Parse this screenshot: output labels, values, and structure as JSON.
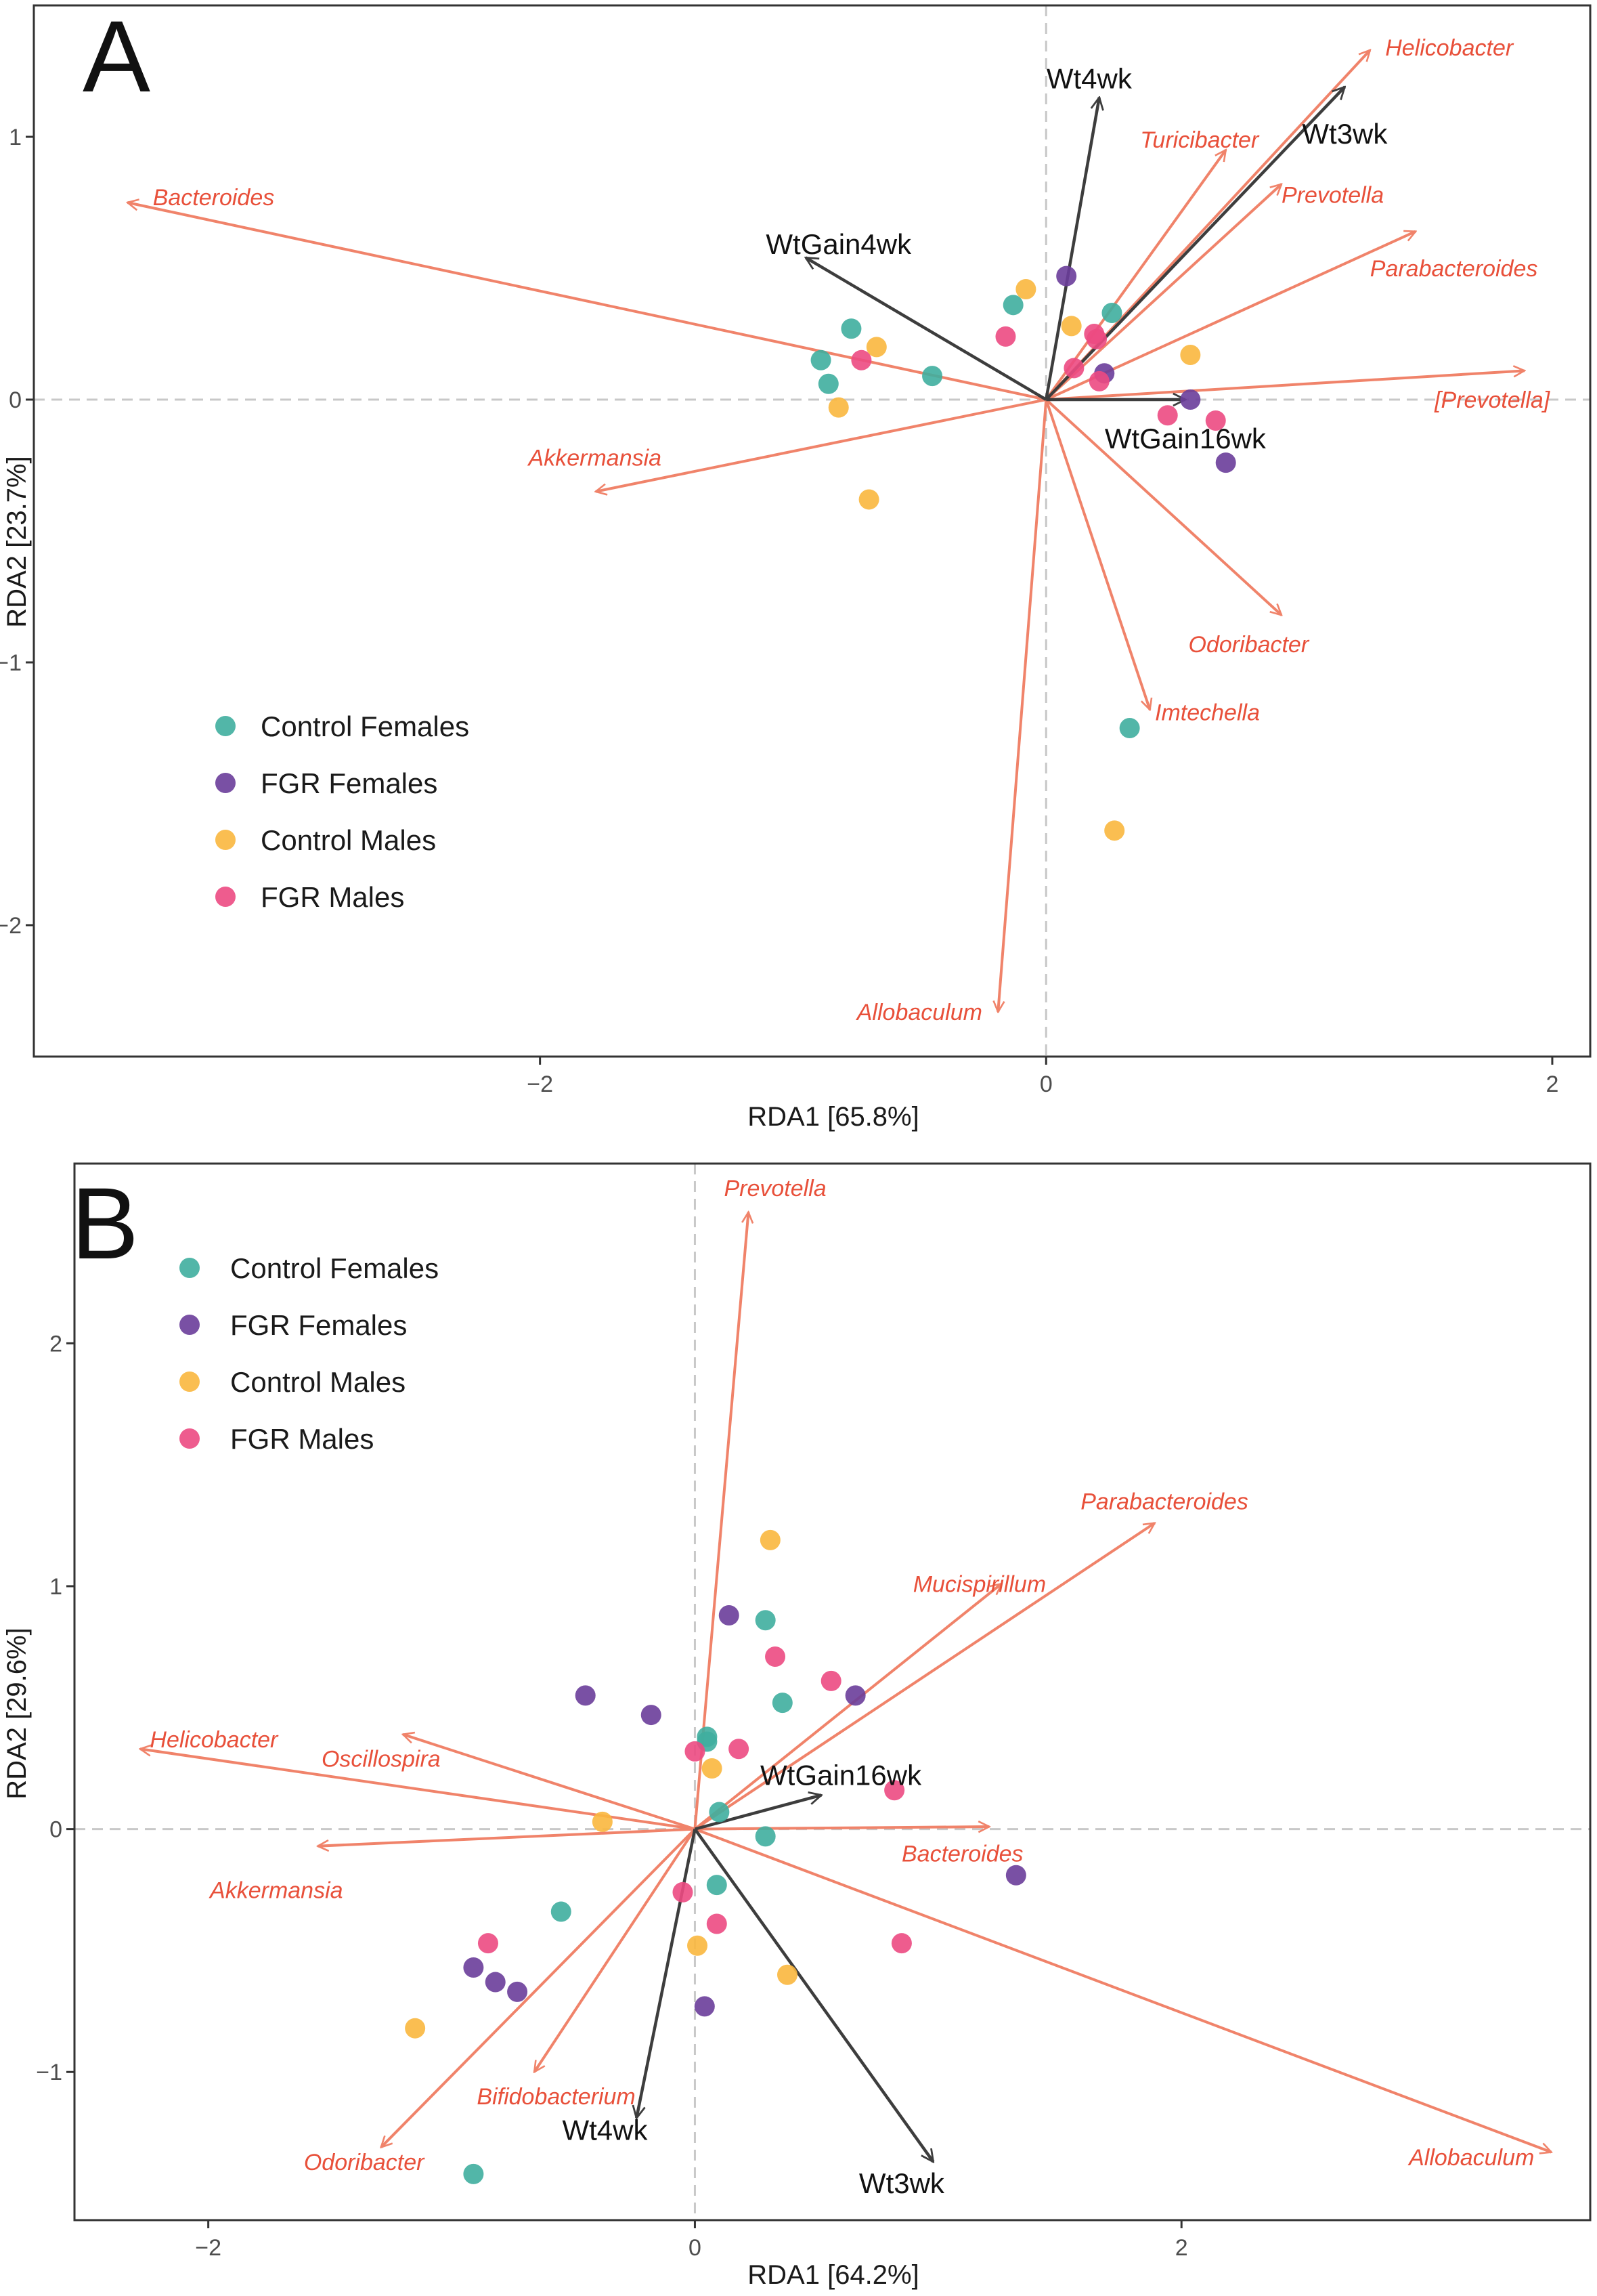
{
  "colors": {
    "control_females": "#3fae9f",
    "fgr_females": "#6a3d9a",
    "control_males": "#f9b73e",
    "fgr_males": "#ec4a82",
    "species_arrow": "#f0836a",
    "species_text": "#e8503a",
    "env_arrow": "#3d3d3d",
    "frame": "#333333",
    "zero_line": "#c8c8c8"
  },
  "chart_data": [
    {
      "type": "scatter",
      "title": "A",
      "xlabel": "RDA1 [65.8%]",
      "ylabel": "RDA2 [23.7%]",
      "xlim": [
        -4.0,
        2.15
      ],
      "ylim": [
        -2.5,
        1.5
      ],
      "xticks": [
        -2,
        0,
        2
      ],
      "xtick_labels": [
        "−2",
        "0",
        "2"
      ],
      "yticks": [
        1,
        0,
        -1,
        -2
      ],
      "ytick_labels": [
        "1",
        "0",
        "−1",
        "−2"
      ],
      "legend_position": "bottom-left",
      "legend": [
        {
          "label": "Control Females",
          "color_key": "control_females"
        },
        {
          "label": "FGR Females",
          "color_key": "fgr_females"
        },
        {
          "label": "Control Males",
          "color_key": "control_males"
        },
        {
          "label": "FGR Males",
          "color_key": "fgr_males"
        }
      ],
      "points": [
        {
          "group": "control_females",
          "x": -0.77,
          "y": 0.27
        },
        {
          "group": "control_females",
          "x": -0.89,
          "y": 0.15
        },
        {
          "group": "control_females",
          "x": -0.86,
          "y": 0.06
        },
        {
          "group": "control_females",
          "x": -0.45,
          "y": 0.09
        },
        {
          "group": "control_females",
          "x": -0.13,
          "y": 0.36
        },
        {
          "group": "control_females",
          "x": 0.26,
          "y": 0.33
        },
        {
          "group": "control_females",
          "x": 0.33,
          "y": -1.25
        },
        {
          "group": "fgr_females",
          "x": 0.08,
          "y": 0.47
        },
        {
          "group": "fgr_females",
          "x": 0.23,
          "y": 0.1
        },
        {
          "group": "fgr_females",
          "x": 0.57,
          "y": 0.0
        },
        {
          "group": "fgr_females",
          "x": 0.71,
          "y": -0.24
        },
        {
          "group": "control_males",
          "x": -0.08,
          "y": 0.42
        },
        {
          "group": "control_males",
          "x": 0.1,
          "y": 0.28
        },
        {
          "group": "control_males",
          "x": -0.67,
          "y": 0.2
        },
        {
          "group": "control_males",
          "x": -0.82,
          "y": -0.03
        },
        {
          "group": "control_males",
          "x": -0.7,
          "y": -0.38
        },
        {
          "group": "control_males",
          "x": 0.57,
          "y": 0.17
        },
        {
          "group": "control_males",
          "x": 0.27,
          "y": -1.64
        },
        {
          "group": "fgr_males",
          "x": -0.73,
          "y": 0.15
        },
        {
          "group": "fgr_males",
          "x": -0.16,
          "y": 0.24
        },
        {
          "group": "fgr_males",
          "x": 0.19,
          "y": 0.25
        },
        {
          "group": "fgr_males",
          "x": 0.2,
          "y": 0.23
        },
        {
          "group": "fgr_males",
          "x": 0.11,
          "y": 0.12
        },
        {
          "group": "fgr_males",
          "x": 0.21,
          "y": 0.07
        },
        {
          "group": "fgr_males",
          "x": 0.48,
          "y": -0.06
        },
        {
          "group": "fgr_males",
          "x": 0.67,
          "y": -0.08
        }
      ],
      "species_vectors": [
        {
          "label": "Helicobacter",
          "x": 1.28,
          "y": 1.33,
          "anchor": "start",
          "dx": 0.06,
          "dy": 0.01
        },
        {
          "label": "Turicibacter",
          "x": 0.71,
          "y": 0.95,
          "anchor": "end",
          "dx": 0.13,
          "dy": 0.04
        },
        {
          "label": "Prevotella",
          "x": 0.93,
          "y": 0.82,
          "anchor": "start",
          "dx": 0.0,
          "dy": -0.04
        },
        {
          "label": "Parabacteroides",
          "x": 1.46,
          "y": 0.64,
          "anchor": "start",
          "dx": -0.18,
          "dy": -0.14
        },
        {
          "label": "Bacteroides",
          "x": -3.63,
          "y": 0.75,
          "anchor": "start",
          "dx": 0.1,
          "dy": 0.02
        },
        {
          "label": "[Prevotella]",
          "x": 1.89,
          "y": 0.11,
          "anchor": "end",
          "dx": 0.1,
          "dy": -0.11
        },
        {
          "label": "Akkermansia",
          "x": -1.78,
          "y": -0.35,
          "anchor": "end",
          "dx": 0.26,
          "dy": 0.13
        },
        {
          "label": "Odoribacter",
          "x": 0.93,
          "y": -0.82,
          "anchor": "middle",
          "dx": -0.13,
          "dy": -0.11
        },
        {
          "label": "Imtechella",
          "x": 0.41,
          "y": -1.18,
          "anchor": "start",
          "dx": 0.02,
          "dy": -0.01
        },
        {
          "label": "Allobaculum",
          "x": -0.19,
          "y": -2.33,
          "anchor": "middle",
          "dx": -0.31,
          "dy": -0.0
        }
      ],
      "env_vectors": [
        {
          "label": "Wt4wk",
          "x": 0.21,
          "y": 1.15,
          "anchor": "middle",
          "dx": -0.04,
          "dy": 0.07
        },
        {
          "label": "Wt3wk",
          "x": 1.18,
          "y": 1.19,
          "anchor": "middle",
          "dx": 0.0,
          "dy": -0.18
        },
        {
          "label": "WtGain4wk",
          "x": -0.95,
          "y": 0.54,
          "anchor": "middle",
          "dx": 0.13,
          "dy": 0.05
        },
        {
          "label": "WtGain16wk",
          "x": 0.55,
          "y": 0.0,
          "anchor": "middle",
          "dx": -0.0,
          "dy": -0.15
        }
      ]
    },
    {
      "type": "scatter",
      "title": "B",
      "xlabel": "RDA1 [64.2%]",
      "ylabel": "RDA2 [29.6%]",
      "xlim": [
        -2.55,
        3.68
      ],
      "ylim": [
        -1.61,
        2.74
      ],
      "xticks": [
        -2,
        0,
        2
      ],
      "xtick_labels": [
        "−2",
        "0",
        "2"
      ],
      "yticks": [
        2,
        1,
        0,
        -1
      ],
      "ytick_labels": [
        "2",
        "1",
        "0",
        "−1"
      ],
      "legend_position": "top-left",
      "legend": [
        {
          "label": "Control Females",
          "color_key": "control_females"
        },
        {
          "label": "FGR Females",
          "color_key": "fgr_females"
        },
        {
          "label": "Control Males",
          "color_key": "control_males"
        },
        {
          "label": "FGR Males",
          "color_key": "fgr_males"
        }
      ],
      "points": [
        {
          "group": "control_females",
          "x": 0.29,
          "y": 0.86
        },
        {
          "group": "control_females",
          "x": 0.36,
          "y": 0.52
        },
        {
          "group": "control_females",
          "x": 0.05,
          "y": 0.38
        },
        {
          "group": "control_females",
          "x": 0.05,
          "y": 0.36
        },
        {
          "group": "control_females",
          "x": 0.1,
          "y": 0.07
        },
        {
          "group": "control_females",
          "x": 0.29,
          "y": -0.03
        },
        {
          "group": "control_females",
          "x": 0.09,
          "y": -0.23
        },
        {
          "group": "control_females",
          "x": -0.55,
          "y": -0.34
        },
        {
          "group": "control_females",
          "x": -0.91,
          "y": -1.42
        },
        {
          "group": "fgr_females",
          "x": 0.14,
          "y": 0.88
        },
        {
          "group": "fgr_females",
          "x": -0.45,
          "y": 0.55
        },
        {
          "group": "fgr_females",
          "x": -0.18,
          "y": 0.47
        },
        {
          "group": "fgr_females",
          "x": 0.66,
          "y": 0.55
        },
        {
          "group": "fgr_females",
          "x": 1.32,
          "y": -0.19
        },
        {
          "group": "fgr_females",
          "x": -0.91,
          "y": -0.57
        },
        {
          "group": "fgr_females",
          "x": -0.82,
          "y": -0.63
        },
        {
          "group": "fgr_females",
          "x": -0.73,
          "y": -0.67
        },
        {
          "group": "fgr_females",
          "x": 0.04,
          "y": -0.73
        },
        {
          "group": "control_males",
          "x": 0.31,
          "y": 1.19
        },
        {
          "group": "control_males",
          "x": 0.07,
          "y": 0.25
        },
        {
          "group": "control_males",
          "x": -0.38,
          "y": 0.03
        },
        {
          "group": "control_males",
          "x": 0.01,
          "y": -0.48
        },
        {
          "group": "control_males",
          "x": 0.38,
          "y": -0.6
        },
        {
          "group": "control_males",
          "x": -1.15,
          "y": -0.82
        },
        {
          "group": "fgr_males",
          "x": 0.33,
          "y": 0.71
        },
        {
          "group": "fgr_males",
          "x": 0.56,
          "y": 0.61
        },
        {
          "group": "fgr_males",
          "x": 0.18,
          "y": 0.33
        },
        {
          "group": "fgr_males",
          "x": 0.0,
          "y": 0.32
        },
        {
          "group": "fgr_males",
          "x": 0.82,
          "y": 0.16
        },
        {
          "group": "fgr_males",
          "x": -0.05,
          "y": -0.26
        },
        {
          "group": "fgr_males",
          "x": 0.09,
          "y": -0.39
        },
        {
          "group": "fgr_males",
          "x": 0.85,
          "y": -0.47
        },
        {
          "group": "fgr_males",
          "x": -0.85,
          "y": -0.47
        }
      ],
      "species_vectors": [
        {
          "label": "Prevotella",
          "x": 0.22,
          "y": 2.54,
          "anchor": "middle",
          "dx": 0.11,
          "dy": 0.1
        },
        {
          "label": "Parabacteroides",
          "x": 1.89,
          "y": 1.26,
          "anchor": "middle",
          "dx": 0.04,
          "dy": 0.09
        },
        {
          "label": "Mucispirillum",
          "x": 1.26,
          "y": 1.01,
          "anchor": "middle",
          "dx": -0.09,
          "dy": 0.0
        },
        {
          "label": "Helicobacter",
          "x": -2.28,
          "y": 0.33,
          "anchor": "start",
          "dx": 0.04,
          "dy": 0.04
        },
        {
          "label": "Oscillospira",
          "x": -1.2,
          "y": 0.39,
          "anchor": "middle",
          "dx": -0.09,
          "dy": -0.1
        },
        {
          "label": "Akkermansia",
          "x": -1.55,
          "y": -0.07,
          "anchor": "middle",
          "dx": -0.17,
          "dy": -0.18
        },
        {
          "label": "Bacteroides",
          "x": 1.21,
          "y": 0.01,
          "anchor": "middle",
          "dx": -0.11,
          "dy": -0.11
        },
        {
          "label": "Allobaculum",
          "x": 3.52,
          "y": -1.33,
          "anchor": "end",
          "dx": -0.07,
          "dy": -0.02
        },
        {
          "label": "Bifidobacterium",
          "x": -0.66,
          "y": -1.0,
          "anchor": "middle",
          "dx": 0.09,
          "dy": -0.1
        },
        {
          "label": "Odoribacter",
          "x": -1.29,
          "y": -1.31,
          "anchor": "middle",
          "dx": -0.07,
          "dy": -0.06
        }
      ],
      "env_vectors": [
        {
          "label": "WtGain16wk",
          "x": 0.52,
          "y": 0.14,
          "anchor": "middle",
          "dx": 0.08,
          "dy": 0.08
        },
        {
          "label": "Wt4wk",
          "x": -0.24,
          "y": -1.19,
          "anchor": "middle",
          "dx": -0.13,
          "dy": -0.05
        },
        {
          "label": "Wt3wk",
          "x": 0.98,
          "y": -1.37,
          "anchor": "middle",
          "dx": -0.13,
          "dy": -0.09
        }
      ]
    }
  ]
}
